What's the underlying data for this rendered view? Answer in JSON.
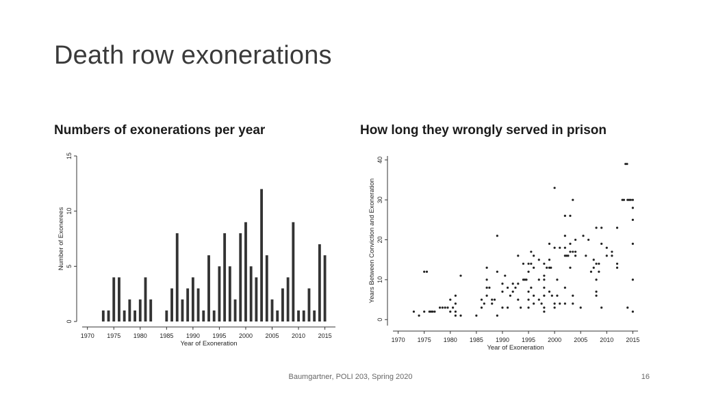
{
  "slide": {
    "title": "Death row exonerations",
    "footer": "Baumgartner, POLI 203, Spring 2020",
    "page_number": "16"
  },
  "left_panel": {
    "heading": "Numbers of exonerations per year"
  },
  "right_panel": {
    "heading": "How long they wrongly served in prison"
  },
  "chart_data": [
    {
      "type": "bar",
      "xlabel": "Year of Exoneration",
      "ylabel": "Number of Exonerees",
      "xlim": [
        1969,
        2017
      ],
      "ylim": [
        0,
        15
      ],
      "xticks": [
        1970,
        1975,
        1980,
        1985,
        1990,
        1995,
        2000,
        2005,
        2010,
        2015
      ],
      "yticks": [
        0,
        5,
        10,
        15
      ],
      "x": [
        1973,
        1974,
        1975,
        1976,
        1977,
        1978,
        1979,
        1980,
        1981,
        1982,
        1983,
        1984,
        1985,
        1986,
        1987,
        1988,
        1989,
        1990,
        1991,
        1992,
        1993,
        1994,
        1995,
        1996,
        1997,
        1998,
        1999,
        2000,
        2001,
        2002,
        2003,
        2004,
        2005,
        2006,
        2007,
        2008,
        2009,
        2010,
        2011,
        2012,
        2013,
        2014,
        2015
      ],
      "values": [
        1,
        1,
        4,
        4,
        1,
        2,
        1,
        2,
        4,
        2,
        0,
        0,
        1,
        3,
        8,
        2,
        3,
        4,
        3,
        1,
        6,
        1,
        5,
        8,
        5,
        2,
        8,
        9,
        5,
        4,
        12,
        6,
        2,
        1,
        3,
        4,
        9,
        1,
        1,
        3,
        1,
        7,
        6
      ],
      "color": "#333333"
    },
    {
      "type": "scatter",
      "xlabel": "Year of Exoneration",
      "ylabel": "Years Between Conviction and Exoneration",
      "xlim": [
        1969,
        2016
      ],
      "ylim": [
        -1.5,
        41
      ],
      "xticks": [
        1970,
        1975,
        1980,
        1985,
        1990,
        1995,
        2000,
        2005,
        2010,
        2015
      ],
      "yticks": [
        0,
        10,
        20,
        30,
        40
      ],
      "points": [
        [
          1973,
          2
        ],
        [
          1974,
          1
        ],
        [
          1975,
          2
        ],
        [
          1975,
          12
        ],
        [
          1975.5,
          12
        ],
        [
          1976,
          2
        ],
        [
          1976.3,
          2
        ],
        [
          1976.6,
          2
        ],
        [
          1977,
          2
        ],
        [
          1978,
          3
        ],
        [
          1978.5,
          3
        ],
        [
          1979,
          3
        ],
        [
          1979.5,
          3
        ],
        [
          1980,
          2
        ],
        [
          1980,
          5
        ],
        [
          1980.5,
          3
        ],
        [
          1981,
          2
        ],
        [
          1981,
          4
        ],
        [
          1981,
          6
        ],
        [
          1981,
          1
        ],
        [
          1982,
          11
        ],
        [
          1982,
          1
        ],
        [
          1985,
          1
        ],
        [
          1986,
          3
        ],
        [
          1986,
          5
        ],
        [
          1986.5,
          4
        ],
        [
          1987,
          6
        ],
        [
          1987,
          8
        ],
        [
          1987,
          10
        ],
        [
          1987,
          13
        ],
        [
          1987.5,
          8
        ],
        [
          1988,
          5
        ],
        [
          1988,
          4
        ],
        [
          1988.5,
          5
        ],
        [
          1989,
          1
        ],
        [
          1989,
          12
        ],
        [
          1989,
          21
        ],
        [
          1990,
          3
        ],
        [
          1990,
          7
        ],
        [
          1990,
          9
        ],
        [
          1990.5,
          11
        ],
        [
          1991,
          3
        ],
        [
          1991,
          8
        ],
        [
          1991.5,
          6
        ],
        [
          1992,
          9
        ],
        [
          1992,
          7
        ],
        [
          1992.5,
          8
        ],
        [
          1993,
          9
        ],
        [
          1993,
          16
        ],
        [
          1993,
          5
        ],
        [
          1993.5,
          3
        ],
        [
          1994,
          10
        ],
        [
          1994.3,
          10
        ],
        [
          1994.6,
          10
        ],
        [
          1994,
          14
        ],
        [
          1995,
          14
        ],
        [
          1995,
          3
        ],
        [
          1995,
          5
        ],
        [
          1995,
          7
        ],
        [
          1995,
          12
        ],
        [
          1995.5,
          14
        ],
        [
          1995.5,
          17
        ],
        [
          1995.5,
          8
        ],
        [
          1996,
          4
        ],
        [
          1996,
          6
        ],
        [
          1996,
          13
        ],
        [
          1996,
          16
        ],
        [
          1997,
          10
        ],
        [
          1997,
          5
        ],
        [
          1997,
          15
        ],
        [
          1997.5,
          4
        ],
        [
          1998,
          10
        ],
        [
          1998,
          11
        ],
        [
          1998,
          14
        ],
        [
          1998,
          3
        ],
        [
          1998,
          2
        ],
        [
          1998,
          6
        ],
        [
          1998,
          8
        ],
        [
          1998.5,
          13
        ],
        [
          1999,
          13
        ],
        [
          1999.3,
          13
        ],
        [
          1999,
          7
        ],
        [
          1999,
          15
        ],
        [
          1999,
          19
        ],
        [
          1999.5,
          6
        ],
        [
          2000,
          18
        ],
        [
          2000,
          33
        ],
        [
          2000,
          4
        ],
        [
          2000,
          3
        ],
        [
          2000.5,
          6
        ],
        [
          2000.5,
          10
        ],
        [
          2001,
          18
        ],
        [
          2001,
          4
        ],
        [
          2002,
          16
        ],
        [
          2002.3,
          16
        ],
        [
          2002.6,
          16
        ],
        [
          2002,
          18
        ],
        [
          2002,
          21
        ],
        [
          2002,
          26
        ],
        [
          2002,
          8
        ],
        [
          2002,
          4
        ],
        [
          2003,
          26
        ],
        [
          2003,
          17
        ],
        [
          2003,
          19
        ],
        [
          2003,
          13
        ],
        [
          2003.5,
          17
        ],
        [
          2003.5,
          30
        ],
        [
          2003.5,
          6
        ],
        [
          2003.5,
          4
        ],
        [
          2004,
          16
        ],
        [
          2004,
          17
        ],
        [
          2004,
          20
        ],
        [
          2005,
          3
        ],
        [
          2005.5,
          21
        ],
        [
          2006,
          16
        ],
        [
          2006.5,
          20
        ],
        [
          2007,
          12
        ],
        [
          2007.5,
          13
        ],
        [
          2007.5,
          15
        ],
        [
          2008,
          14
        ],
        [
          2008,
          23
        ],
        [
          2008,
          10
        ],
        [
          2008,
          7
        ],
        [
          2008,
          6
        ],
        [
          2008.5,
          12
        ],
        [
          2008.5,
          14
        ],
        [
          2009,
          23
        ],
        [
          2009,
          19
        ],
        [
          2009,
          3
        ],
        [
          2010,
          16
        ],
        [
          2010,
          18
        ],
        [
          2011,
          16
        ],
        [
          2011,
          17
        ],
        [
          2012,
          14
        ],
        [
          2012,
          13
        ],
        [
          2012,
          23
        ],
        [
          2013,
          30
        ],
        [
          2013.3,
          30
        ],
        [
          2013.6,
          39
        ],
        [
          2013.9,
          39
        ],
        [
          2014,
          30
        ],
        [
          2014.3,
          30
        ],
        [
          2014.6,
          30
        ],
        [
          2014,
          3
        ],
        [
          2015,
          30
        ],
        [
          2015,
          28
        ],
        [
          2015,
          25
        ],
        [
          2015,
          19
        ],
        [
          2015,
          10
        ],
        [
          2015,
          2
        ]
      ],
      "color": "#222222"
    }
  ]
}
